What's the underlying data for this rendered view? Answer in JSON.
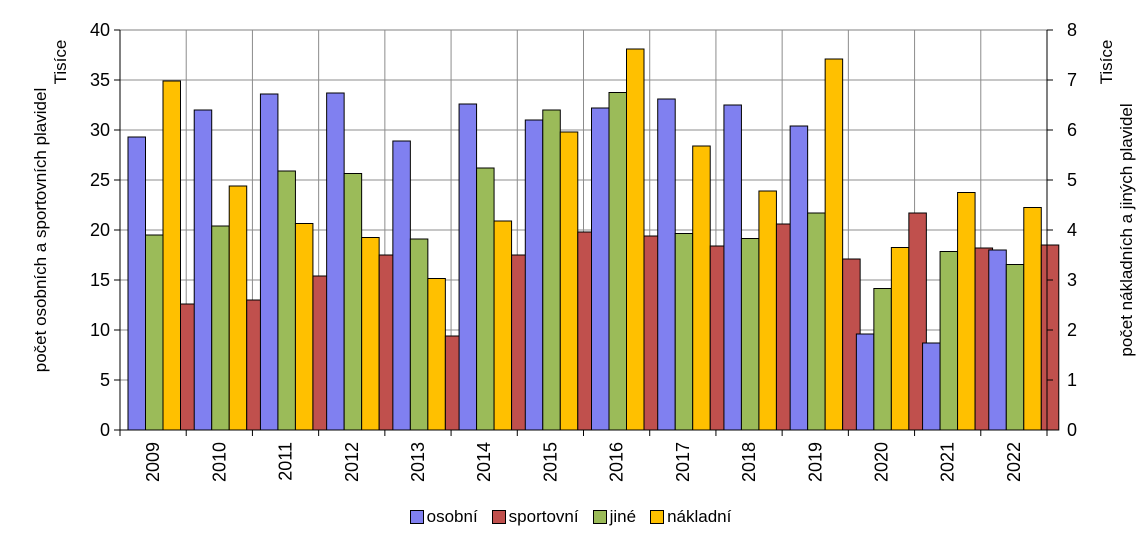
{
  "chart_data": {
    "type": "bar",
    "categories": [
      "2009",
      "2010",
      "2011",
      "2012",
      "2013",
      "2014",
      "2015",
      "2016",
      "2017",
      "2018",
      "2019",
      "2020",
      "2021",
      "2022"
    ],
    "left_axis": {
      "title_line1": "Tisíce",
      "title_line2": "počet osobních a sportovních plavidel",
      "ylim": [
        0,
        40
      ],
      "ticks": [
        "0",
        "5",
        "10",
        "15",
        "20",
        "25",
        "30",
        "35",
        "40"
      ]
    },
    "right_axis": {
      "title_line1": "Tisíce",
      "title_line2": "počet nákladních a jiných plavidel",
      "ylim": [
        0,
        8
      ],
      "ticks": [
        "0",
        "1",
        "2",
        "3",
        "4",
        "5",
        "6",
        "7",
        "8"
      ]
    },
    "grid": true,
    "legend_position": "bottom",
    "series": [
      {
        "name": "osobní",
        "axis": "left",
        "color": "#8080f0",
        "values": [
          29.3,
          32.0,
          33.6,
          33.7,
          28.9,
          32.6,
          31.0,
          32.2,
          33.1,
          32.5,
          30.4,
          9.6,
          8.7,
          18.0
        ]
      },
      {
        "name": "sportovní",
        "axis": "left",
        "color": "#c0504d",
        "values": [
          12.6,
          13.0,
          15.4,
          17.5,
          9.4,
          17.5,
          19.8,
          19.4,
          18.4,
          20.6,
          17.1,
          21.7,
          18.2,
          18.5
        ]
      },
      {
        "name": "jiné",
        "axis": "right",
        "color": "#9bbb59",
        "values": [
          3.9,
          4.08,
          5.18,
          5.13,
          3.82,
          5.24,
          6.4,
          6.75,
          3.93,
          3.83,
          4.34,
          2.83,
          3.57,
          3.31
        ]
      },
      {
        "name": "nákladní",
        "axis": "right",
        "color": "#ffc000",
        "values": [
          6.98,
          4.88,
          4.13,
          3.85,
          3.03,
          4.18,
          5.96,
          7.62,
          5.68,
          4.78,
          7.42,
          3.65,
          4.75,
          4.45
        ]
      }
    ]
  }
}
